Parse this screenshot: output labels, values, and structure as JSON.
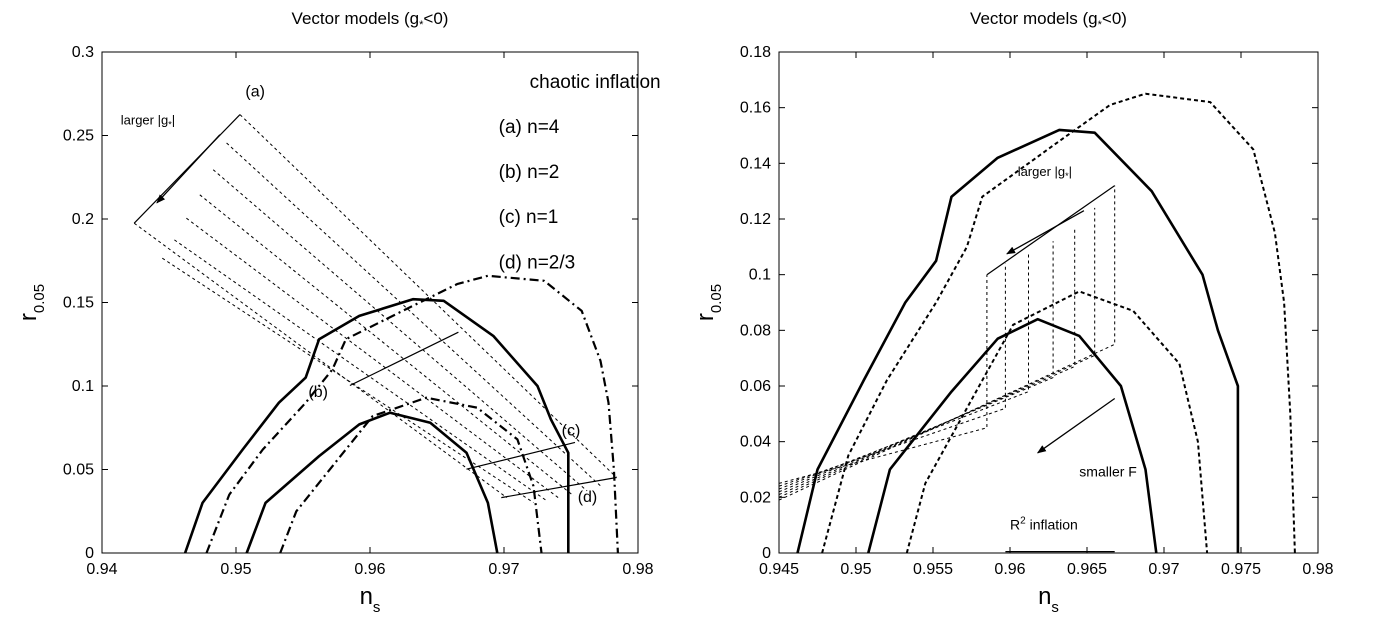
{
  "chart_data": [
    {
      "type": "line",
      "title_prefix": "Vector models (g",
      "title_sub": "*",
      "title_suffix": "<0)",
      "xlabel": "n",
      "xlabel_sub": "s",
      "ylabel": "r",
      "ylabel_sub": "0.05",
      "xlim": [
        0.94,
        0.98
      ],
      "ylim": [
        0,
        0.3
      ],
      "xticks": [
        "0.94",
        "0.95",
        "0.96",
        "0.97",
        "0.98"
      ],
      "yticks": [
        "0",
        "0.05",
        "0.1",
        "0.15",
        "0.2",
        "0.25",
        "0.3"
      ],
      "grid": false,
      "contours": [
        {
          "style": "solid",
          "points": [
            [
              0.9462,
              0
            ],
            [
              0.9475,
              0.03
            ],
            [
              0.9505,
              0.062
            ],
            [
              0.9532,
              0.09
            ],
            [
              0.9552,
              0.105
            ],
            [
              0.9562,
              0.128
            ],
            [
              0.9592,
              0.142
            ],
            [
              0.9632,
              0.152
            ],
            [
              0.9655,
              0.151
            ],
            [
              0.9692,
              0.13
            ],
            [
              0.9725,
              0.1
            ],
            [
              0.9735,
              0.08
            ],
            [
              0.9748,
              0.06
            ],
            [
              0.9748,
              0.02
            ],
            [
              0.9748,
              0
            ]
          ]
        },
        {
          "style": "dashdot",
          "points": [
            [
              0.9478,
              0
            ],
            [
              0.9495,
              0.035
            ],
            [
              0.952,
              0.062
            ],
            [
              0.9552,
              0.09
            ],
            [
              0.9572,
              0.11
            ],
            [
              0.9582,
              0.128
            ],
            [
              0.9632,
              0.148
            ],
            [
              0.9665,
              0.161
            ],
            [
              0.9688,
              0.166
            ],
            [
              0.973,
              0.163
            ],
            [
              0.9758,
              0.145
            ],
            [
              0.9772,
              0.115
            ],
            [
              0.9778,
              0.09
            ],
            [
              0.9782,
              0.05
            ],
            [
              0.9785,
              0
            ]
          ]
        },
        {
          "style": "solid",
          "points": [
            [
              0.9508,
              0
            ],
            [
              0.9522,
              0.03
            ],
            [
              0.9562,
              0.058
            ],
            [
              0.9592,
              0.077
            ],
            [
              0.9615,
              0.084
            ],
            [
              0.9645,
              0.078
            ],
            [
              0.9672,
              0.06
            ],
            [
              0.9688,
              0.03
            ],
            [
              0.9695,
              0
            ]
          ]
        },
        {
          "style": "dashdot",
          "points": [
            [
              0.9533,
              0
            ],
            [
              0.9545,
              0.025
            ],
            [
              0.9575,
              0.055
            ],
            [
              0.9602,
              0.082
            ],
            [
              0.9642,
              0.093
            ],
            [
              0.968,
              0.087
            ],
            [
              0.971,
              0.068
            ],
            [
              0.9722,
              0.04
            ],
            [
              0.9728,
              0
            ]
          ]
        }
      ],
      "predictions": {
        "dashed_lines": [
          [
            [
              0.9503,
              0.2625
            ],
            [
              0.9784,
              0.0452
            ]
          ],
          [
            [
              0.9493,
              0.2455
            ],
            [
              0.9772,
              0.0402
            ]
          ],
          [
            [
              0.9483,
              0.2295
            ],
            [
              0.9762,
              0.0372
            ]
          ],
          [
            [
              0.9473,
              0.2145
            ],
            [
              0.9752,
              0.0342
            ]
          ],
          [
            [
              0.9463,
              0.2005
            ],
            [
              0.9742,
              0.0322
            ]
          ],
          [
            [
              0.9454,
              0.1875
            ],
            [
              0.9732,
              0.0312
            ]
          ],
          [
            [
              0.9445,
              0.1765
            ],
            [
              0.9722,
              0.0302
            ]
          ],
          [
            [
              0.9424,
              0.1975
            ],
            [
              0.9702,
              0.0332
            ]
          ]
        ],
        "solid_lines": [
          [
            [
              0.9424,
              0.1975
            ],
            [
              0.9503,
              0.2625
            ]
          ],
          [
            [
              0.9585,
              0.1003
            ],
            [
              0.9666,
              0.1322
            ]
          ],
          [
            [
              0.9672,
              0.0502
            ],
            [
              0.9753,
              0.0662
            ]
          ],
          [
            [
              0.9698,
              0.0332
            ],
            [
              0.9784,
              0.0452
            ]
          ]
        ]
      },
      "arrows": [
        {
          "from": [
            0.9488,
            0.2505
          ],
          "to": [
            0.9441,
            0.2097
          ]
        }
      ],
      "annotations": [
        {
          "text": "(a)",
          "x": 0.9507,
          "y": 0.2735,
          "size": 16
        },
        {
          "text": "(b)",
          "x": 0.9554,
          "y": 0.0935,
          "size": 16
        },
        {
          "text": "(c)",
          "x": 0.9743,
          "y": 0.0705,
          "size": 16
        },
        {
          "text": "(d)",
          "x": 0.9755,
          "y": 0.0305,
          "size": 16
        },
        {
          "text": "chaotic inflation",
          "x": 0.9768,
          "y": 0.2785,
          "size": 19,
          "anchor": "middle"
        },
        {
          "text": "(a) n=4",
          "x": 0.9696,
          "y": 0.2515,
          "size": 19
        },
        {
          "text": "(b) n=2",
          "x": 0.9696,
          "y": 0.2245,
          "size": 19
        },
        {
          "text": "(c) n=1",
          "x": 0.9696,
          "y": 0.1975,
          "size": 19
        },
        {
          "text": "(d) n=2/3",
          "x": 0.9696,
          "y": 0.1705,
          "size": 19
        },
        {
          "text": "larger |g",
          "sub": "*",
          "suffix": "|",
          "x": 0.9414,
          "y": 0.2565,
          "size": 13
        }
      ]
    },
    {
      "type": "line",
      "title_prefix": "Vector models (g",
      "title_sub": "*",
      "title_suffix": "<0)",
      "xlabel": "n",
      "xlabel_sub": "s",
      "ylabel": "r",
      "ylabel_sub": "0.05",
      "xlim": [
        0.945,
        0.98
      ],
      "ylim": [
        0,
        0.18
      ],
      "xticks": [
        "0.945",
        "0.95",
        "0.955",
        "0.96",
        "0.965",
        "0.97",
        "0.975",
        "0.98"
      ],
      "yticks": [
        "0",
        "0.02",
        "0.04",
        "0.06",
        "0.08",
        "0.1",
        "0.12",
        "0.14",
        "0.16",
        "0.18"
      ],
      "grid": false,
      "contours": [
        {
          "style": "solid",
          "points": [
            [
              0.9462,
              0
            ],
            [
              0.9475,
              0.03
            ],
            [
              0.9505,
              0.062
            ],
            [
              0.9532,
              0.09
            ],
            [
              0.9552,
              0.105
            ],
            [
              0.9562,
              0.128
            ],
            [
              0.9592,
              0.142
            ],
            [
              0.9632,
              0.152
            ],
            [
              0.9655,
              0.151
            ],
            [
              0.9692,
              0.13
            ],
            [
              0.9725,
              0.1
            ],
            [
              0.9735,
              0.08
            ],
            [
              0.9748,
              0.06
            ],
            [
              0.9748,
              0.02
            ],
            [
              0.9748,
              0
            ]
          ]
        },
        {
          "style": "dotted",
          "points": [
            [
              0.9478,
              0
            ],
            [
              0.9495,
              0.035
            ],
            [
              0.952,
              0.062
            ],
            [
              0.9552,
              0.09
            ],
            [
              0.9572,
              0.11
            ],
            [
              0.9582,
              0.128
            ],
            [
              0.9632,
              0.148
            ],
            [
              0.9665,
              0.161
            ],
            [
              0.9688,
              0.165
            ],
            [
              0.973,
              0.162
            ],
            [
              0.9758,
              0.145
            ],
            [
              0.9772,
              0.115
            ],
            [
              0.9778,
              0.09
            ],
            [
              0.9782,
              0.05
            ],
            [
              0.9785,
              0
            ]
          ]
        },
        {
          "style": "solid",
          "points": [
            [
              0.9508,
              0
            ],
            [
              0.9522,
              0.03
            ],
            [
              0.9562,
              0.058
            ],
            [
              0.9592,
              0.077
            ],
            [
              0.9618,
              0.084
            ],
            [
              0.9645,
              0.078
            ],
            [
              0.9672,
              0.06
            ],
            [
              0.9688,
              0.03
            ],
            [
              0.9695,
              0
            ]
          ]
        },
        {
          "style": "dotted",
          "points": [
            [
              0.9533,
              0
            ],
            [
              0.9545,
              0.025
            ],
            [
              0.9575,
              0.055
            ],
            [
              0.9602,
              0.082
            ],
            [
              0.9645,
              0.094
            ],
            [
              0.968,
              0.087
            ],
            [
              0.971,
              0.068
            ],
            [
              0.9722,
              0.04
            ],
            [
              0.9728,
              0
            ]
          ]
        }
      ],
      "predictions": {
        "dashed_lines": [
          [
            [
              0.945,
              0.025
            ],
            [
              0.9585,
              0.045
            ],
            [
              0.9585,
              0.1
            ]
          ],
          [
            [
              0.945,
              0.024
            ],
            [
              0.9597,
              0.052
            ],
            [
              0.9597,
              0.104
            ]
          ],
          [
            [
              0.945,
              0.023
            ],
            [
              0.9612,
              0.058
            ],
            [
              0.9612,
              0.108
            ]
          ],
          [
            [
              0.945,
              0.022
            ],
            [
              0.9628,
              0.063
            ],
            [
              0.9628,
              0.112
            ]
          ],
          [
            [
              0.945,
              0.021
            ],
            [
              0.9642,
              0.067
            ],
            [
              0.9642,
              0.117
            ]
          ],
          [
            [
              0.945,
              0.02
            ],
            [
              0.9655,
              0.071
            ],
            [
              0.9655,
              0.124
            ]
          ],
          [
            [
              0.945,
              0.019
            ],
            [
              0.9668,
              0.075
            ],
            [
              0.9668,
              0.132
            ]
          ]
        ],
        "solid_lines": [
          [
            [
              0.9585,
              0.1
            ],
            [
              0.9668,
              0.132
            ]
          ],
          [
            [
              0.9597,
              0.0005
            ],
            [
              0.9668,
              0.0005
            ]
          ]
        ]
      },
      "arrows": [
        {
          "from": [
            0.9648,
            0.123
          ],
          "to": [
            0.9598,
            0.1075
          ]
        },
        {
          "from": [
            0.9668,
            0.0555
          ],
          "to": [
            0.9618,
            0.036
          ]
        }
      ],
      "annotations": [
        {
          "text": "larger |g",
          "sub": "*",
          "suffix": "|",
          "x": 0.9605,
          "y": 0.1355,
          "size": 13
        },
        {
          "text": "smaller F",
          "x": 0.9645,
          "y": 0.0275,
          "size": 14
        },
        {
          "text": "R",
          "sup": "2",
          "suffix": " inflation",
          "x": 0.96,
          "y": 0.0085,
          "size": 14
        }
      ]
    }
  ]
}
